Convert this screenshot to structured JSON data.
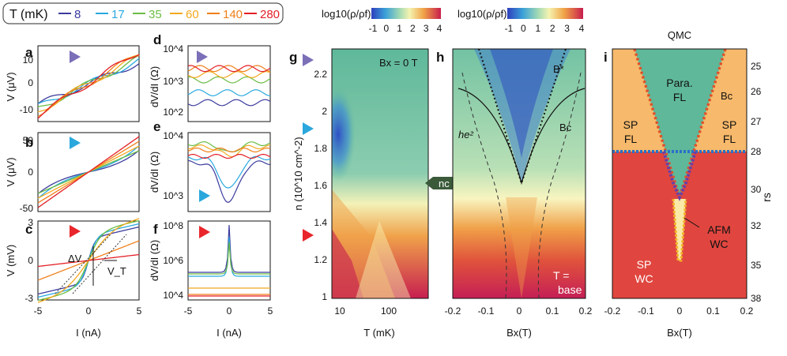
{
  "legend": {
    "title": "T (mK)",
    "entries": [
      {
        "label": "8",
        "color": "#3b3b9e"
      },
      {
        "label": "17",
        "color": "#29a9df"
      },
      {
        "label": "35",
        "color": "#6cbd45"
      },
      {
        "label": "60",
        "color": "#f2a81d"
      },
      {
        "label": "140",
        "color": "#ef7f1a"
      },
      {
        "label": "280",
        "color": "#e31f26"
      }
    ]
  },
  "marker_colors": {
    "a": "#7b6fb8",
    "b": "#2aa7dd",
    "c": "#e8262b"
  },
  "panels": {
    "a": {
      "label": "a",
      "ylabel": "V (μV)",
      "yticks": [
        "10",
        "0",
        "-10"
      ]
    },
    "b": {
      "label": "b",
      "ylabel": "V (μV)",
      "yticks": [
        "50",
        "0",
        "-50"
      ]
    },
    "c": {
      "label": "c",
      "ylabel": "V (mV)",
      "yticks": [
        "3",
        "0",
        "-3"
      ],
      "dv": "ΔV",
      "vt": "V_T"
    },
    "abc_x": {
      "xlabel": "I (nA)",
      "xticks": [
        "-5",
        "0",
        "5"
      ]
    },
    "d": {
      "label": "d",
      "ylabel": "dV/dI (Ω)",
      "yticks": [
        "10^4",
        "10^3",
        "10^2"
      ]
    },
    "e": {
      "label": "e",
      "ylabel": "dV/dI (Ω)",
      "yticks": [
        "10^4",
        "10^3"
      ]
    },
    "f": {
      "label": "f",
      "ylabel": "dV/dI (Ω)",
      "yticks": [
        "10^8",
        "10^6",
        "10^4"
      ]
    },
    "def_x": {
      "xlabel": "I (nA)",
      "xticks": [
        "-5",
        "0",
        "5"
      ]
    },
    "g": {
      "label": "g",
      "annot": "Bx = 0 T",
      "ylabel": "n (10^10 cm^-2)",
      "yticks": [
        "2.2",
        "2",
        "1.8",
        "1.6",
        "1.4",
        "1.2",
        "1"
      ],
      "xlabel": "T (mK)",
      "xticks": [
        "10",
        "100"
      ]
    },
    "h": {
      "label": "h",
      "annots": [
        "B*",
        "he²",
        "Bc"
      ],
      "base": [
        "T =",
        "base"
      ],
      "xlabel": "Bx(T)",
      "xticks": [
        "-0.2",
        "-0.1",
        "0",
        "0.1",
        "0.2"
      ],
      "nc": "nc"
    },
    "i": {
      "label": "i",
      "title": "QMC",
      "regions": [
        "Para.",
        "FL",
        "SP",
        "FL",
        "SP",
        "FL",
        "AFM",
        "WC",
        "SP",
        "WC"
      ],
      "bc": "Bc",
      "xlabel": "Bx(T)",
      "xticks": [
        "-0.2",
        "-0.1",
        "0",
        "0.1",
        "0.2"
      ],
      "ylabel": "rs",
      "yticks": [
        "25",
        "26",
        "27",
        "28",
        "30",
        "32",
        "35",
        "38"
      ]
    }
  },
  "colorbars": [
    {
      "label": "log10(ρ/ρf)",
      "ticks": [
        "-1",
        "0",
        "1",
        "2",
        "3",
        "4"
      ]
    },
    {
      "label": "log10(ρ/ρf)",
      "ticks": [
        "-1",
        "0",
        "1",
        "2",
        "3",
        "4"
      ]
    }
  ]
}
